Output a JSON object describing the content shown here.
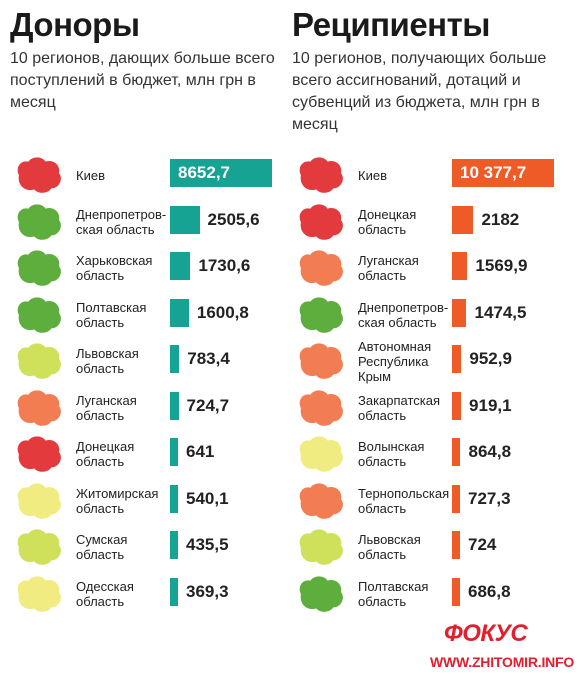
{
  "colors": {
    "donor_bar": "#16a394",
    "recipient_bar": "#ee5b26",
    "brand": "#e0202e"
  },
  "map_colors": {
    "red": "#e23a3d",
    "green": "#5eae3e",
    "orange": "#f27d52",
    "lime": "#cfe05a",
    "yellow": "#f0ec82"
  },
  "chart_data": [
    {
      "type": "bar",
      "orientation": "horizontal",
      "title": "Доноры",
      "subtitle": "10 регионов, дающих больше всего поступлений в бюджет, млн грн в месяц",
      "categories": [
        "Киев",
        "Днепропетров-\nская область",
        "Харьковская\nобласть",
        "Полтавская\nобласть",
        "Львовская\nобласть",
        "Луганская\nобласть",
        "Донецкая\nобласть",
        "Житомирская\nобласть",
        "Сумская\nобласть",
        "Одесская\nобласть"
      ],
      "values": [
        8652.7,
        2505.6,
        1730.6,
        1600.8,
        783.4,
        724.7,
        641,
        540.1,
        435.5,
        369.3
      ],
      "labels": [
        "8652,7",
        "2505,6",
        "1730,6",
        "1600,8",
        "783,4",
        "724,7",
        "641",
        "540,1",
        "435,5",
        "369,3"
      ],
      "map_colors": [
        "red",
        "green",
        "green",
        "green",
        "lime",
        "orange",
        "red",
        "yellow",
        "lime",
        "yellow"
      ],
      "max": 8652.7
    },
    {
      "type": "bar",
      "orientation": "horizontal",
      "title": "Реципиенты",
      "subtitle": "10 регионов, получающих больше всего ассигнований, дотаций и субвенций из бюджета, млн грн в месяц",
      "categories": [
        "Киев",
        "Донецкая\nобласть",
        "Луганская\nобласть",
        "Днепропетров-\nская область",
        "Автономная\nРеспублика\nКрым",
        "Закарпатская\nобласть",
        "Волынская\nобласть",
        "Тернопольская\nобласть",
        "Львовская\nобласть",
        "Полтавская\nобласть"
      ],
      "values": [
        10377.7,
        2182,
        1569.9,
        1474.5,
        952.9,
        919.1,
        864.8,
        727.3,
        724,
        686.8
      ],
      "labels": [
        "10 377,7",
        "2182",
        "1569,9",
        "1474,5",
        "952,9",
        "919,1",
        "864,8",
        "727,3",
        "724",
        "686,8"
      ],
      "map_colors": [
        "red",
        "red",
        "orange",
        "green",
        "orange",
        "orange",
        "yellow",
        "orange",
        "lime",
        "green"
      ],
      "max": 10377.7
    }
  ],
  "branding": {
    "logo": "ФОКУС",
    "site": "WWW.ZHITOMIR.INFO"
  }
}
